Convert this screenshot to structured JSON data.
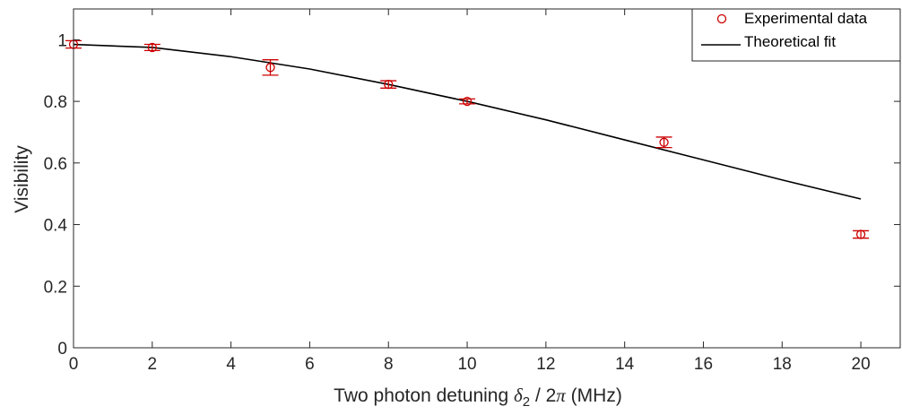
{
  "chart_data": {
    "type": "scatter",
    "xlabel": "Two photon detuning δ2 / 2π (MHz)",
    "ylabel": "Visibility",
    "xlim": [
      0,
      21
    ],
    "ylim": [
      0,
      1.1
    ],
    "xticks": [
      0,
      2,
      4,
      6,
      8,
      10,
      12,
      14,
      16,
      18,
      20
    ],
    "yticks": [
      0,
      0.2,
      0.4,
      0.6,
      0.8,
      1
    ],
    "xtick_labels": [
      "0",
      "2",
      "4",
      "6",
      "8",
      "10",
      "12",
      "14",
      "16",
      "18",
      "20"
    ],
    "ytick_labels": [
      "0",
      "0.2",
      "0.4",
      "0.6",
      "0.8",
      "1"
    ],
    "legend_position": "top-right",
    "series": [
      {
        "name": "Experimental data",
        "kind": "scatter-errorbar",
        "color": "#cc0000",
        "x": [
          0,
          2,
          5,
          8,
          10,
          15,
          20
        ],
        "y": [
          0.985,
          0.975,
          0.91,
          0.855,
          0.8,
          0.667,
          0.368
        ],
        "yerr": [
          0.012,
          0.01,
          0.025,
          0.012,
          0.008,
          0.017,
          0.012
        ]
      },
      {
        "name": "Theoretical fit",
        "kind": "line",
        "color": "#000000",
        "x": [
          0,
          2,
          4,
          6,
          8,
          10,
          12,
          14,
          16,
          18,
          20
        ],
        "y": [
          0.985,
          0.975,
          0.945,
          0.905,
          0.855,
          0.8,
          0.74,
          0.675,
          0.61,
          0.545,
          0.483
        ]
      }
    ]
  }
}
